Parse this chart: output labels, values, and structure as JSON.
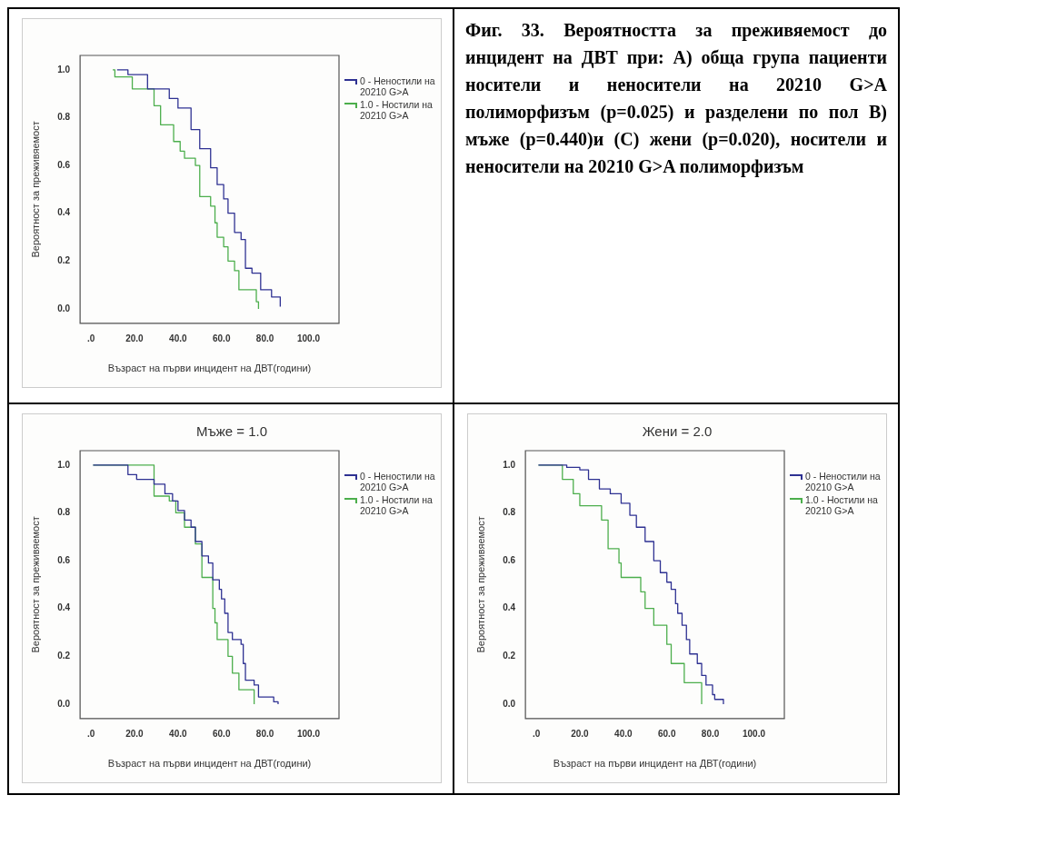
{
  "chart_data": [
    {
      "type": "step",
      "xlabel": "Възраст на първи инцидент на ДВТ(години)",
      "ylabel": "Вероятност за преживяемост",
      "legend": "top right",
      "marker": "none",
      "xlim": [
        -5,
        114
      ],
      "ylim": [
        -0.06,
        1.06
      ],
      "xticks": [
        {
          "value": 0,
          "label": ".0"
        },
        {
          "value": 20,
          "label": "20.0"
        },
        {
          "value": 40,
          "label": "40.0"
        },
        {
          "value": 60,
          "label": "60.0"
        },
        {
          "value": 80,
          "label": "80.0"
        },
        {
          "value": 100,
          "label": "100.0"
        }
      ],
      "yticks": [
        {
          "value": 0,
          "label": "0.0"
        },
        {
          "value": 0.2,
          "label": "0.2"
        },
        {
          "value": 0.4,
          "label": "0.4"
        },
        {
          "value": 0.6,
          "label": "0.6"
        },
        {
          "value": 0.8,
          "label": "0.8"
        },
        {
          "value": 1,
          "label": "1.0"
        }
      ],
      "series": [
        {
          "name": "0 - Неностили на 20210 G>A",
          "color": "#2e3192",
          "x": [
            12,
            17,
            26,
            36,
            40,
            46,
            50,
            55,
            58,
            61,
            63,
            66,
            69,
            71,
            74,
            78,
            83,
            87
          ],
          "values": [
            1,
            0.98,
            0.92,
            0.88,
            0.84,
            0.75,
            0.67,
            0.59,
            0.52,
            0.46,
            0.4,
            0.32,
            0.29,
            0.17,
            0.15,
            0.08,
            0.05,
            0.01
          ]
        },
        {
          "name": "1.0 - Ностили на 20210 G>A",
          "color": "#4cae4c",
          "x": [
            10,
            11,
            19,
            29,
            32,
            38,
            41,
            43,
            48,
            50,
            55,
            57,
            58,
            61,
            63,
            66,
            68,
            76,
            77
          ],
          "values": [
            1,
            0.97,
            0.92,
            0.85,
            0.77,
            0.7,
            0.66,
            0.63,
            0.6,
            0.47,
            0.43,
            0.36,
            0.3,
            0.26,
            0.2,
            0.16,
            0.08,
            0.03,
            0
          ]
        }
      ]
    },
    {
      "type": "other",
      "title": "Фиг. 33. Вероятността за преживяемост до инцидент на ДВТ при: А) обща група пациенти носители и неносители на 20210 G>A полиморфизъм (p=0.025) и разделени по пол В) мъже (p=0.440)и (С) жени (p=0.020), носители и неносители на 20210 G>A  полиморфизъм"
    },
    {
      "type": "step",
      "title": "Мъже = 1.0",
      "xlabel": "Възраст на първи инцидент на ДВТ(години)",
      "ylabel": "Вероятност за преживяемост",
      "legend": "top right",
      "marker": "none",
      "xlim": [
        -5,
        114
      ],
      "ylim": [
        -0.06,
        1.06
      ],
      "xticks": [
        {
          "value": 0,
          "label": ".0"
        },
        {
          "value": 20,
          "label": "20.0"
        },
        {
          "value": 40,
          "label": "40.0"
        },
        {
          "value": 60,
          "label": "60.0"
        },
        {
          "value": 80,
          "label": "80.0"
        },
        {
          "value": 100,
          "label": "100.0"
        }
      ],
      "yticks": [
        {
          "value": 0,
          "label": "0.0"
        },
        {
          "value": 0.2,
          "label": "0.2"
        },
        {
          "value": 0.4,
          "label": "0.4"
        },
        {
          "value": 0.6,
          "label": "0.6"
        },
        {
          "value": 0.8,
          "label": "0.8"
        },
        {
          "value": 1,
          "label": "1.0"
        }
      ],
      "series": [
        {
          "name": "0 - Неностили на 20210 G>A",
          "color": "#2e3192",
          "x": [
            1,
            13,
            17,
            21,
            29,
            34,
            37.5,
            40,
            43,
            46,
            48,
            51,
            54,
            56,
            59,
            60,
            61.5,
            63,
            65,
            69,
            70,
            71,
            75,
            77,
            84,
            86
          ],
          "values": [
            1,
            1,
            0.96,
            0.94,
            0.92,
            0.88,
            0.85,
            0.81,
            0.77,
            0.74,
            0.68,
            0.62,
            0.59,
            0.52,
            0.48,
            0.44,
            0.38,
            0.3,
            0.27,
            0.25,
            0.17,
            0.1,
            0.08,
            0.03,
            0.01,
            0
          ]
        },
        {
          "name": "1.0 - Ностили на 20210 G>A",
          "color": "#4cae4c",
          "x": [
            1,
            29,
            36,
            39,
            43,
            48,
            51,
            56,
            57,
            58,
            63,
            65,
            68,
            75
          ],
          "values": [
            1,
            0.87,
            0.85,
            0.8,
            0.74,
            0.67,
            0.53,
            0.4,
            0.34,
            0.27,
            0.2,
            0.13,
            0.06,
            0
          ]
        }
      ]
    },
    {
      "type": "step",
      "title": "Жени = 2.0",
      "xlabel": "Възраст на първи инцидент на ДВТ(години)",
      "ylabel": "Вероятност за преживяемост",
      "legend": "top right",
      "marker": "none",
      "xlim": [
        -5,
        114
      ],
      "ylim": [
        -0.06,
        1.06
      ],
      "xticks": [
        {
          "value": 0,
          "label": ".0"
        },
        {
          "value": 20,
          "label": "20.0"
        },
        {
          "value": 40,
          "label": "40.0"
        },
        {
          "value": 60,
          "label": "60.0"
        },
        {
          "value": 80,
          "label": "80.0"
        },
        {
          "value": 100,
          "label": "100.0"
        }
      ],
      "yticks": [
        {
          "value": 0,
          "label": "0.0"
        },
        {
          "value": 0.2,
          "label": "0.2"
        },
        {
          "value": 0.4,
          "label": "0.4"
        },
        {
          "value": 0.6,
          "label": "0.6"
        },
        {
          "value": 0.8,
          "label": "0.8"
        },
        {
          "value": 1,
          "label": "1.0"
        }
      ],
      "series": [
        {
          "name": "0 - Неностили на 20210 G>A",
          "color": "#2e3192",
          "x": [
            1,
            14,
            20,
            24,
            29,
            34,
            39,
            43,
            46,
            50,
            54,
            57,
            60,
            62,
            64,
            65,
            67,
            69,
            70.5,
            74,
            76,
            78,
            81,
            82,
            86
          ],
          "values": [
            1,
            0.99,
            0.98,
            0.94,
            0.9,
            0.88,
            0.84,
            0.79,
            0.74,
            0.68,
            0.6,
            0.55,
            0.51,
            0.48,
            0.42,
            0.38,
            0.33,
            0.27,
            0.21,
            0.17,
            0.12,
            0.08,
            0.04,
            0.02,
            0
          ]
        },
        {
          "name": "1.0 - Ностили на 20210 G>A",
          "color": "#4cae4c",
          "x": [
            1,
            12,
            17,
            20,
            30,
            33,
            38,
            39,
            48,
            50,
            54,
            60,
            62,
            68,
            76
          ],
          "values": [
            1,
            0.94,
            0.88,
            0.83,
            0.77,
            0.65,
            0.59,
            0.53,
            0.47,
            0.4,
            0.33,
            0.25,
            0.17,
            0.09,
            0
          ]
        }
      ]
    }
  ]
}
